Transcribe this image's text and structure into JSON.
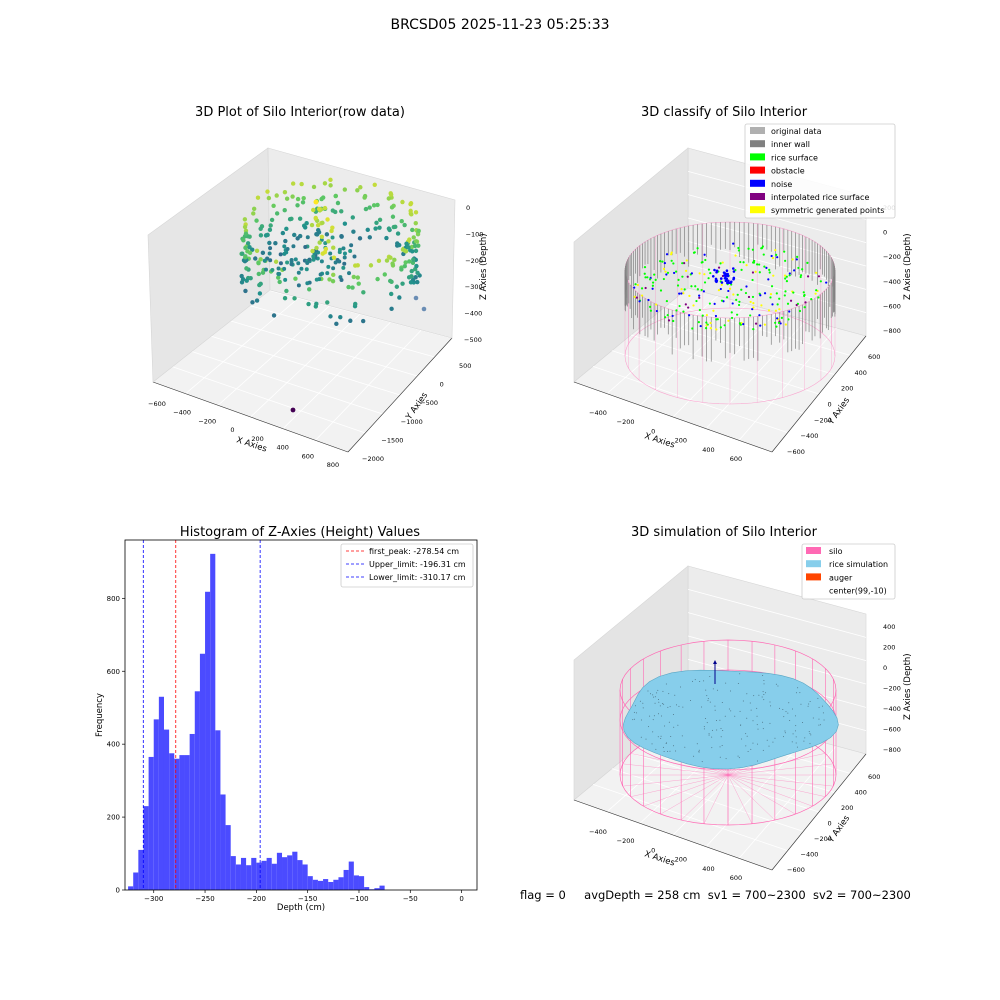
{
  "figure_title": "BRCSD05 2025-11-23 05:25:33",
  "footer": {
    "flag": "flag = 0",
    "avg": "avgDepth = 258 cm",
    "sv1": "sv1 = 700~2300",
    "sv2": "sv2 = 700~2300"
  },
  "colors": {
    "original": "#b0b0b0",
    "inner_wall": "#808080",
    "rice_surface": "#00ff00",
    "obstacle": "#ff0000",
    "noise": "#0000ff",
    "interpolated": "#800080",
    "symmetric": "#ffff00",
    "silo": "#ff69b4",
    "rice_sim": "#87ceeb",
    "auger": "#ff4500",
    "hist_bar": "#4b4bff"
  },
  "chart_data": [
    {
      "type": "scatter",
      "plot": "3d",
      "title": "3D Plot of Silo Interior(row data)",
      "xlabel": "X Axies",
      "ylabel": "Y Axies",
      "zlabel": "Z Axies (Depth)",
      "x_ticks": [
        "−600",
        "−400",
        "−200",
        "0",
        "200",
        "400",
        "600",
        "800"
      ],
      "y_ticks": [
        "−2000",
        "−1500",
        "−1000",
        "−500",
        "0",
        "500"
      ],
      "z_ticks": [
        "−500",
        "−400",
        "−300",
        "−200",
        "−100",
        "0"
      ],
      "xlim": [
        -650,
        850
      ],
      "ylim": [
        -2050,
        650
      ],
      "zlim": [
        -520,
        20
      ],
      "colormap": "viridis"
    },
    {
      "type": "scatter",
      "plot": "3d",
      "title": "3D classify of Silo Interior",
      "xlabel": "X Axies",
      "ylabel": "Y Axies",
      "zlabel": "Z Axies (Depth)",
      "x_ticks": [
        "−400",
        "−200",
        "0",
        "200",
        "400",
        "600"
      ],
      "y_ticks": [
        "−600",
        "−400",
        "−200",
        "0",
        "200",
        "400",
        "600"
      ],
      "z_ticks": [
        "−800",
        "−600",
        "−400",
        "−200",
        "0",
        "200"
      ],
      "legend": [
        "original data",
        "inner wall",
        "rice surface",
        "obstacle",
        "noise",
        "interpolated rice surface",
        "symmetric generated points"
      ],
      "legend_position": "top-right"
    },
    {
      "type": "bar",
      "title": "Histogram of Z-Axies (Height) Values",
      "xlabel": "Depth (cm)",
      "ylabel": "Frequency",
      "x_ticks": [
        "−300",
        "−250",
        "−200",
        "−150",
        "−100",
        "−50",
        "0"
      ],
      "y_ticks": [
        "0",
        "200",
        "400",
        "600",
        "800"
      ],
      "xlim": [
        -328,
        15
      ],
      "ylim": [
        0,
        960
      ],
      "bin_width": 5,
      "bin_start": -325,
      "values": [
        10,
        48,
        110,
        230,
        365,
        468,
        530,
        440,
        375,
        360,
        370,
        370,
        428,
        545,
        648,
        818,
        922,
        438,
        262,
        178,
        93,
        70,
        88,
        68,
        88,
        75,
        80,
        88,
        72,
        102,
        90,
        95,
        105,
        82,
        70,
        38,
        28,
        25,
        30,
        22,
        28,
        35,
        55,
        78,
        40,
        38,
        8,
        2,
        5,
        12,
        0
      ],
      "lines": [
        {
          "label": "first_peak: -278.54 cm",
          "x": -278.54,
          "color": "#ff0000"
        },
        {
          "label": "Upper_limit: -196.31 cm",
          "x": -196.31,
          "color": "#0000ff"
        },
        {
          "label": "Lower_limit: -310.17 cm",
          "x": -310.17,
          "color": "#0000ff"
        }
      ],
      "legend_position": "top-right",
      "grid": false
    },
    {
      "type": "area",
      "plot": "3d",
      "title": "3D simulation of Silo Interior",
      "xlabel": "X Axies",
      "ylabel": "Y Axies",
      "zlabel": "Z Axies (Depth)",
      "x_ticks": [
        "−400",
        "−200",
        "0",
        "200",
        "400",
        "600"
      ],
      "y_ticks": [
        "−600",
        "−400",
        "−200",
        "0",
        "200",
        "400",
        "600"
      ],
      "z_ticks": [
        "−800",
        "−600",
        "−400",
        "−200",
        "0",
        "200",
        "400"
      ],
      "legend": [
        "silo",
        "rice simulation",
        "auger",
        "center(99,-10)"
      ],
      "legend_position": "top-right"
    }
  ]
}
